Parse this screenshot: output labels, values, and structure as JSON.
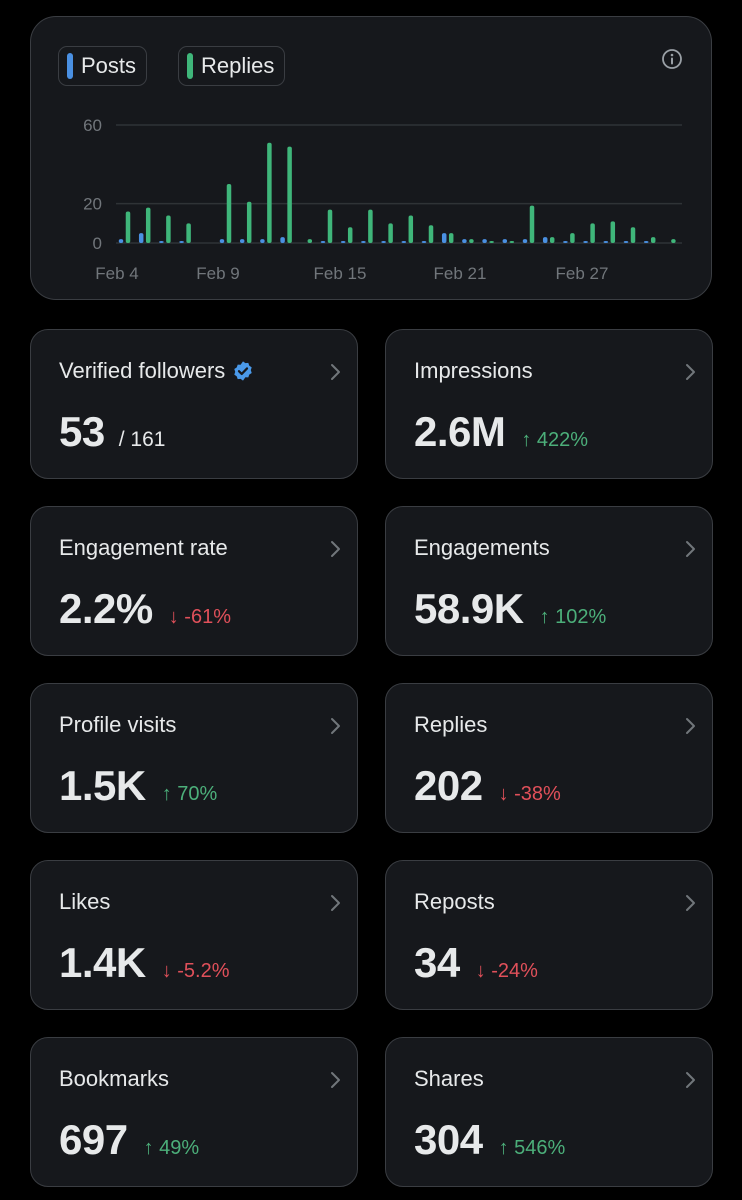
{
  "legend": {
    "posts_label": "Posts",
    "replies_label": "Replies"
  },
  "colors": {
    "posts": "#4a90e2",
    "replies": "#3fb67a",
    "up": "#4caf7a",
    "down": "#e0505a",
    "verified": "#4a99e9"
  },
  "icons": {
    "info": "info-icon",
    "chevron": "chevron-right-icon",
    "verified": "verified-badge-icon"
  },
  "chart_data": {
    "type": "bar",
    "x_tick_labels": [
      "Feb 4",
      "Feb 9",
      "Feb 15",
      "Feb 21",
      "Feb 27"
    ],
    "y_tick_labels": [
      "60",
      "20",
      "0"
    ],
    "y_ticks": [
      60,
      20,
      0
    ],
    "ylim": [
      0,
      60
    ],
    "grid": true,
    "legend_position": "top-left",
    "categories": [
      "Feb 3",
      "Feb 4",
      "Feb 5",
      "Feb 6",
      "Feb 7",
      "Feb 8",
      "Feb 9",
      "Feb 10",
      "Feb 11",
      "Feb 12",
      "Feb 13",
      "Feb 14",
      "Feb 15",
      "Feb 16",
      "Feb 17",
      "Feb 18",
      "Feb 19",
      "Feb 20",
      "Feb 21",
      "Feb 22",
      "Feb 23",
      "Feb 24",
      "Feb 25",
      "Feb 26",
      "Feb 27",
      "Feb 28",
      "Feb 29",
      "Mar 1"
    ],
    "series": [
      {
        "name": "Posts",
        "values": [
          2,
          5,
          1,
          1,
          0,
          2,
          2,
          2,
          3,
          0,
          1,
          1,
          1,
          1,
          1,
          1,
          5,
          2,
          2,
          2,
          2,
          3,
          1,
          1,
          1,
          1,
          1,
          0
        ]
      },
      {
        "name": "Replies",
        "values": [
          16,
          18,
          14,
          10,
          0,
          30,
          21,
          51,
          49,
          2,
          17,
          8,
          17,
          10,
          14,
          9,
          5,
          2,
          1,
          1,
          19,
          3,
          5,
          10,
          11,
          8,
          3,
          2
        ]
      }
    ]
  },
  "stats": [
    {
      "label": "Verified followers",
      "value": "53",
      "sub": "/ 161",
      "change": "",
      "direction": ""
    },
    {
      "label": "Impressions",
      "value": "2.6M",
      "sub": "",
      "change": "↑ 422%",
      "direction": "up"
    },
    {
      "label": "Engagement rate",
      "value": "2.2%",
      "sub": "",
      "change": "↓ -61%",
      "direction": "down"
    },
    {
      "label": "Engagements",
      "value": "58.9K",
      "sub": "",
      "change": "↑ 102%",
      "direction": "up"
    },
    {
      "label": "Profile visits",
      "value": "1.5K",
      "sub": "",
      "change": "↑ 70%",
      "direction": "up"
    },
    {
      "label": "Replies",
      "value": "202",
      "sub": "",
      "change": "↓ -38%",
      "direction": "down"
    },
    {
      "label": "Likes",
      "value": "1.4K",
      "sub": "",
      "change": "↓ -5.2%",
      "direction": "down"
    },
    {
      "label": "Reposts",
      "value": "34",
      "sub": "",
      "change": "↓ -24%",
      "direction": "down"
    },
    {
      "label": "Bookmarks",
      "value": "697",
      "sub": "",
      "change": "↑ 49%",
      "direction": "up"
    },
    {
      "label": "Shares",
      "value": "304",
      "sub": "",
      "change": "↑ 546%",
      "direction": "up"
    }
  ]
}
